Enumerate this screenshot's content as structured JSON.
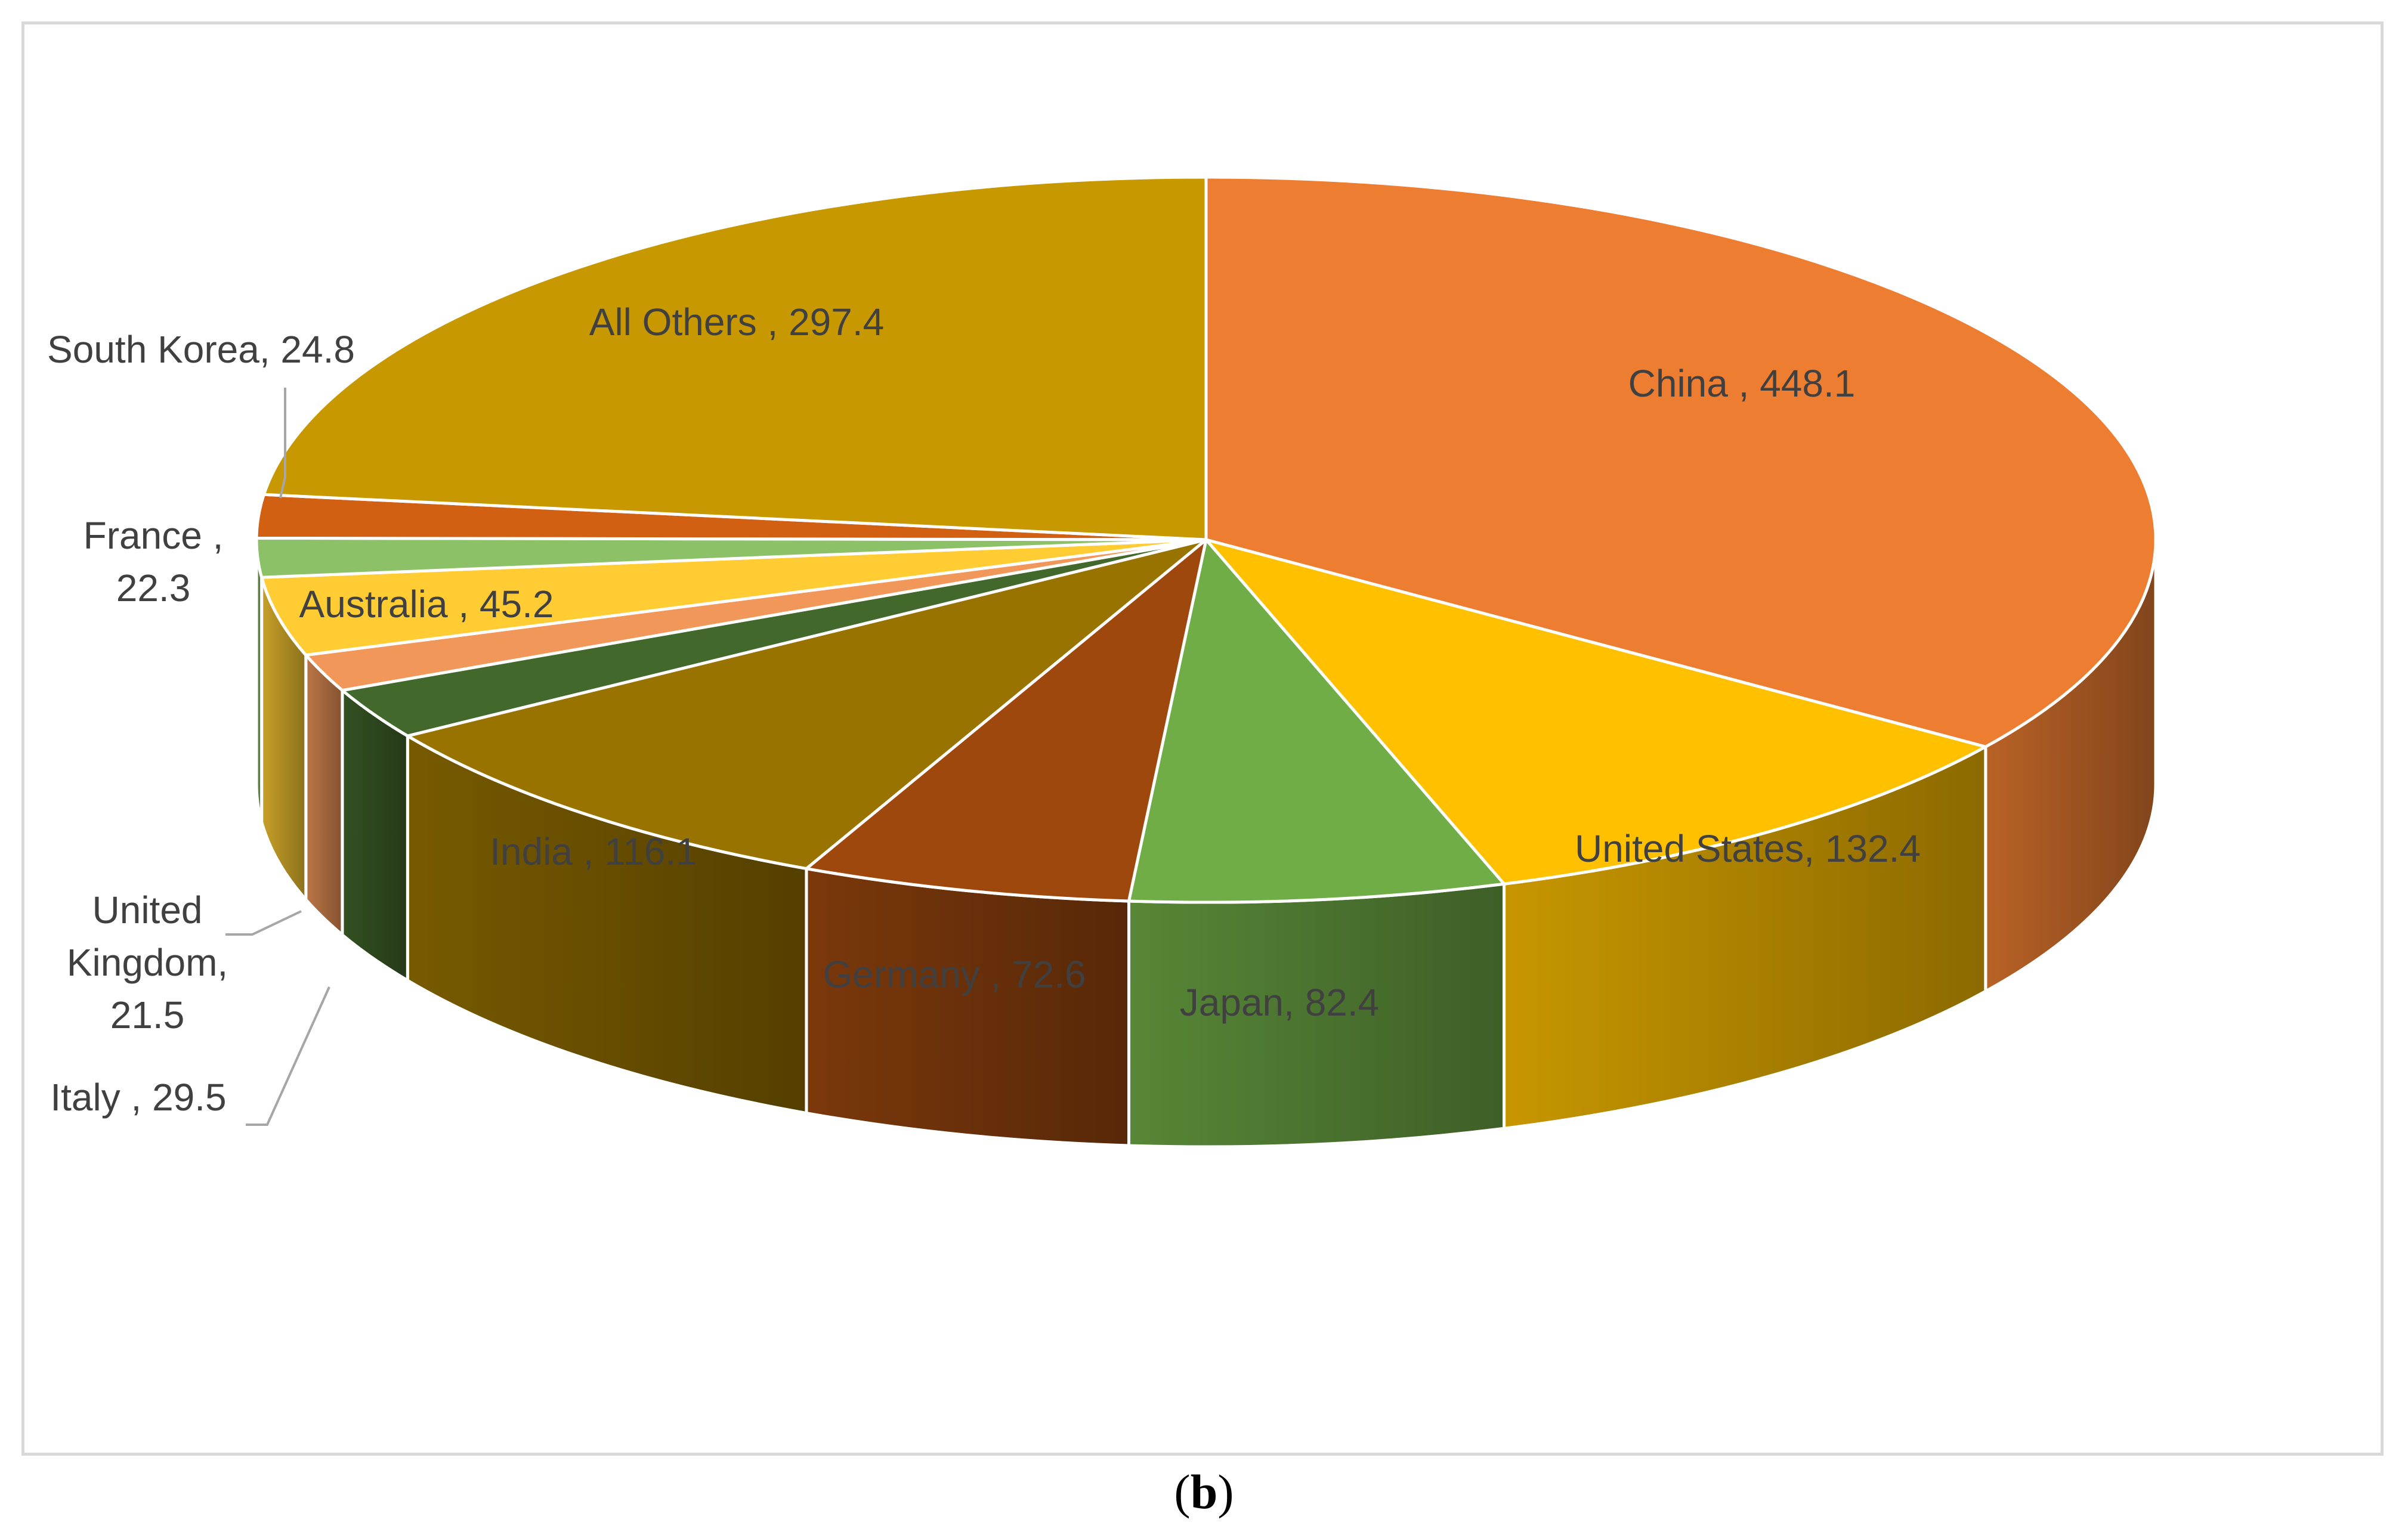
{
  "chart_data": {
    "type": "pie",
    "three_d": true,
    "title": "",
    "slices": [
      {
        "label": "China",
        "value": 448.1,
        "label_text": "China , 448.1",
        "color": "#ED7D31"
      },
      {
        "label": "United States",
        "value": 132.4,
        "label_text": "United States, 132.4",
        "color": "#FFC000"
      },
      {
        "label": "Japan",
        "value": 82.4,
        "label_text": "Japan, 82.4",
        "color": "#70AD47"
      },
      {
        "label": "Germany",
        "value": 72.6,
        "label_text": "Germany , 72.6",
        "color": "#9E480E"
      },
      {
        "label": "India",
        "value": 116.1,
        "label_text": "India , 116.1",
        "color": "#997300"
      },
      {
        "label": "Italy",
        "value": 29.5,
        "label_text": "Italy , 29.5",
        "color": "#43682B"
      },
      {
        "label": "United Kingdom",
        "value": 21.5,
        "label_text": "United Kingdom, 21.5",
        "color": "#F1975A"
      },
      {
        "label": "Australia",
        "value": 45.2,
        "label_text": "Australia , 45.2",
        "color": "#FFCD33"
      },
      {
        "label": "France",
        "value": 22.3,
        "label_text": "France , 22.3",
        "color": "#8CC168"
      },
      {
        "label": "South Korea",
        "value": 24.8,
        "label_text": "South Korea, 24.8",
        "color": "#D26012"
      },
      {
        "label": "All Others",
        "value": 297.4,
        "label_text": "All Others , 297.4",
        "color": "#C89800"
      }
    ]
  },
  "caption": {
    "open": "(",
    "letter": "b",
    "close": ")"
  }
}
